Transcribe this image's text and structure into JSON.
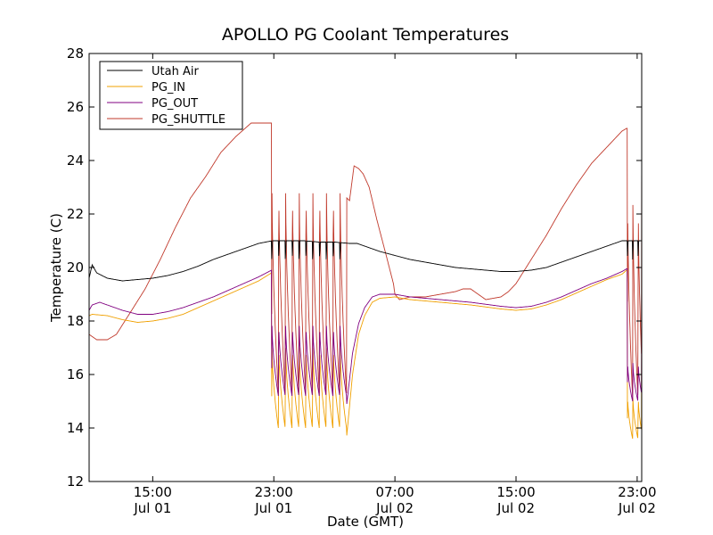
{
  "chart_data": {
    "type": "line",
    "title": "APOLLO PG Coolant Temperatures",
    "xlabel": "Date (GMT)",
    "ylabel": "Temperature (C)",
    "x_unit": "hours since Jul 01 00:00 GMT",
    "xlim": [
      10.8,
      47.3
    ],
    "ylim": [
      12,
      28
    ],
    "yticks": [
      12,
      14,
      16,
      18,
      20,
      22,
      24,
      26,
      28
    ],
    "xticks": [
      {
        "value": 15,
        "label1": "15:00",
        "label2": "Jul 01"
      },
      {
        "value": 23,
        "label1": "23:00",
        "label2": "Jul 01"
      },
      {
        "value": 31,
        "label1": "07:00",
        "label2": "Jul 02"
      },
      {
        "value": 39,
        "label1": "15:00",
        "label2": "Jul 02"
      },
      {
        "value": 47,
        "label1": "23:00",
        "label2": "Jul 02"
      }
    ],
    "grid": false,
    "legend_position": "top-left",
    "series": [
      {
        "name": "Utah Air",
        "color": "#000000",
        "x": [
          10.8,
          11.0,
          11.3,
          12.0,
          13.0,
          14.0,
          15.0,
          16.0,
          17.0,
          18.0,
          19.0,
          20.0,
          21.0,
          22.0,
          22.9,
          25.0,
          26.0,
          27.0,
          28.0,
          28.5,
          29.0,
          30.0,
          31.0,
          32.0,
          33.0,
          34.0,
          35.0,
          36.0,
          37.0,
          38.0,
          39.0,
          40.0,
          41.0,
          42.0,
          43.0,
          44.0,
          45.0,
          46.0,
          46.4,
          47.3
        ],
        "y": [
          19.6,
          20.1,
          19.8,
          19.6,
          19.5,
          19.55,
          19.6,
          19.7,
          19.85,
          20.05,
          20.3,
          20.5,
          20.7,
          20.9,
          21.0,
          21.0,
          20.95,
          20.95,
          20.9,
          20.9,
          20.8,
          20.6,
          20.45,
          20.3,
          20.2,
          20.1,
          20.0,
          19.95,
          19.9,
          19.85,
          19.85,
          19.9,
          20.0,
          20.2,
          20.4,
          20.6,
          20.8,
          21.0,
          21.0,
          21.0
        ],
        "cycles": [
          {
            "from": 22.85,
            "to": 27.8,
            "period": 0.45,
            "low": 20.2
          },
          {
            "from": 46.35,
            "to": 47.3,
            "period": 0.35,
            "low": 20.3
          }
        ]
      },
      {
        "name": "PG_IN",
        "color": "#f0a000",
        "x": [
          10.8,
          11.0,
          12.0,
          13.0,
          14.0,
          15.0,
          16.0,
          17.0,
          18.0,
          19.0,
          20.0,
          21.0,
          22.0,
          22.85,
          27.8,
          28.2,
          28.6,
          29.0,
          29.5,
          30.0,
          31.0,
          32.0,
          34.0,
          36.0,
          38.0,
          39.0,
          40.0,
          41.0,
          42.0,
          43.0,
          44.0,
          45.0,
          46.0,
          46.3
        ],
        "y": [
          18.2,
          18.25,
          18.2,
          18.05,
          17.95,
          18.0,
          18.1,
          18.25,
          18.5,
          18.75,
          19.0,
          19.25,
          19.5,
          19.8,
          13.6,
          16.0,
          17.5,
          18.2,
          18.7,
          18.85,
          18.9,
          18.8,
          18.7,
          18.6,
          18.45,
          18.4,
          18.45,
          18.6,
          18.8,
          19.05,
          19.3,
          19.55,
          19.75,
          19.9
        ],
        "cycles": [
          {
            "from": 22.85,
            "to": 27.8,
            "period": 0.45,
            "low": 14.0,
            "high": 17.2
          },
          {
            "from": 46.35,
            "to": 47.3,
            "period": 0.35,
            "low": 13.6,
            "high": 15.2
          }
        ]
      },
      {
        "name": "PG_OUT",
        "color": "#800080",
        "x": [
          10.8,
          11.0,
          11.5,
          12.0,
          13.0,
          14.0,
          15.0,
          16.0,
          17.0,
          18.0,
          19.0,
          20.0,
          21.0,
          22.0,
          22.85,
          27.8,
          28.2,
          28.6,
          29.0,
          29.5,
          30.0,
          31.0,
          32.0,
          34.0,
          36.0,
          38.0,
          39.0,
          40.0,
          41.0,
          42.0,
          43.0,
          44.0,
          45.0,
          46.0,
          46.3
        ],
        "y": [
          18.4,
          18.6,
          18.7,
          18.6,
          18.4,
          18.25,
          18.25,
          18.35,
          18.5,
          18.7,
          18.9,
          19.15,
          19.4,
          19.65,
          19.9,
          14.8,
          16.8,
          17.9,
          18.5,
          18.9,
          19.0,
          19.0,
          18.9,
          18.8,
          18.7,
          18.55,
          18.5,
          18.55,
          18.7,
          18.9,
          19.15,
          19.4,
          19.6,
          19.85,
          19.95
        ],
        "cycles": [
          {
            "from": 22.85,
            "to": 27.8,
            "period": 0.45,
            "low": 15.2,
            "high": 18.0
          },
          {
            "from": 46.35,
            "to": 47.3,
            "period": 0.35,
            "low": 15.0,
            "high": 16.5
          }
        ]
      },
      {
        "name": "PG_SHUTTLE",
        "color": "#c0392b",
        "x": [
          10.8,
          11.3,
          12.0,
          12.6,
          13.5,
          14.5,
          15.5,
          16.5,
          17.5,
          18.5,
          19.5,
          20.5,
          21.5,
          22.5,
          22.85,
          28.0,
          28.3,
          28.6,
          28.9,
          29.3,
          29.8,
          30.4,
          30.9,
          31.0,
          31.3,
          32.0,
          33.0,
          34.0,
          35.0,
          35.5,
          36.0,
          37.0,
          38.0,
          38.5,
          39.0,
          40.0,
          41.0,
          42.0,
          43.0,
          44.0,
          45.0,
          46.0,
          46.3
        ],
        "y": [
          17.5,
          17.3,
          17.3,
          17.5,
          18.3,
          19.2,
          20.3,
          21.5,
          22.6,
          23.4,
          24.3,
          24.9,
          25.4,
          25.4,
          25.4,
          22.5,
          23.8,
          23.7,
          23.5,
          23.0,
          21.8,
          20.5,
          19.4,
          19.0,
          18.8,
          18.9,
          18.9,
          19.0,
          19.1,
          19.2,
          19.2,
          18.8,
          18.9,
          19.1,
          19.4,
          20.3,
          21.2,
          22.2,
          23.1,
          23.9,
          24.5,
          25.1,
          25.2
        ],
        "cycles": [
          {
            "from": 22.85,
            "to": 27.8,
            "period": 0.45,
            "low": 15.3,
            "high": 23.3
          },
          {
            "from": 46.35,
            "to": 47.3,
            "period": 0.35,
            "low": 15.1,
            "high": 22.7
          }
        ]
      }
    ]
  }
}
